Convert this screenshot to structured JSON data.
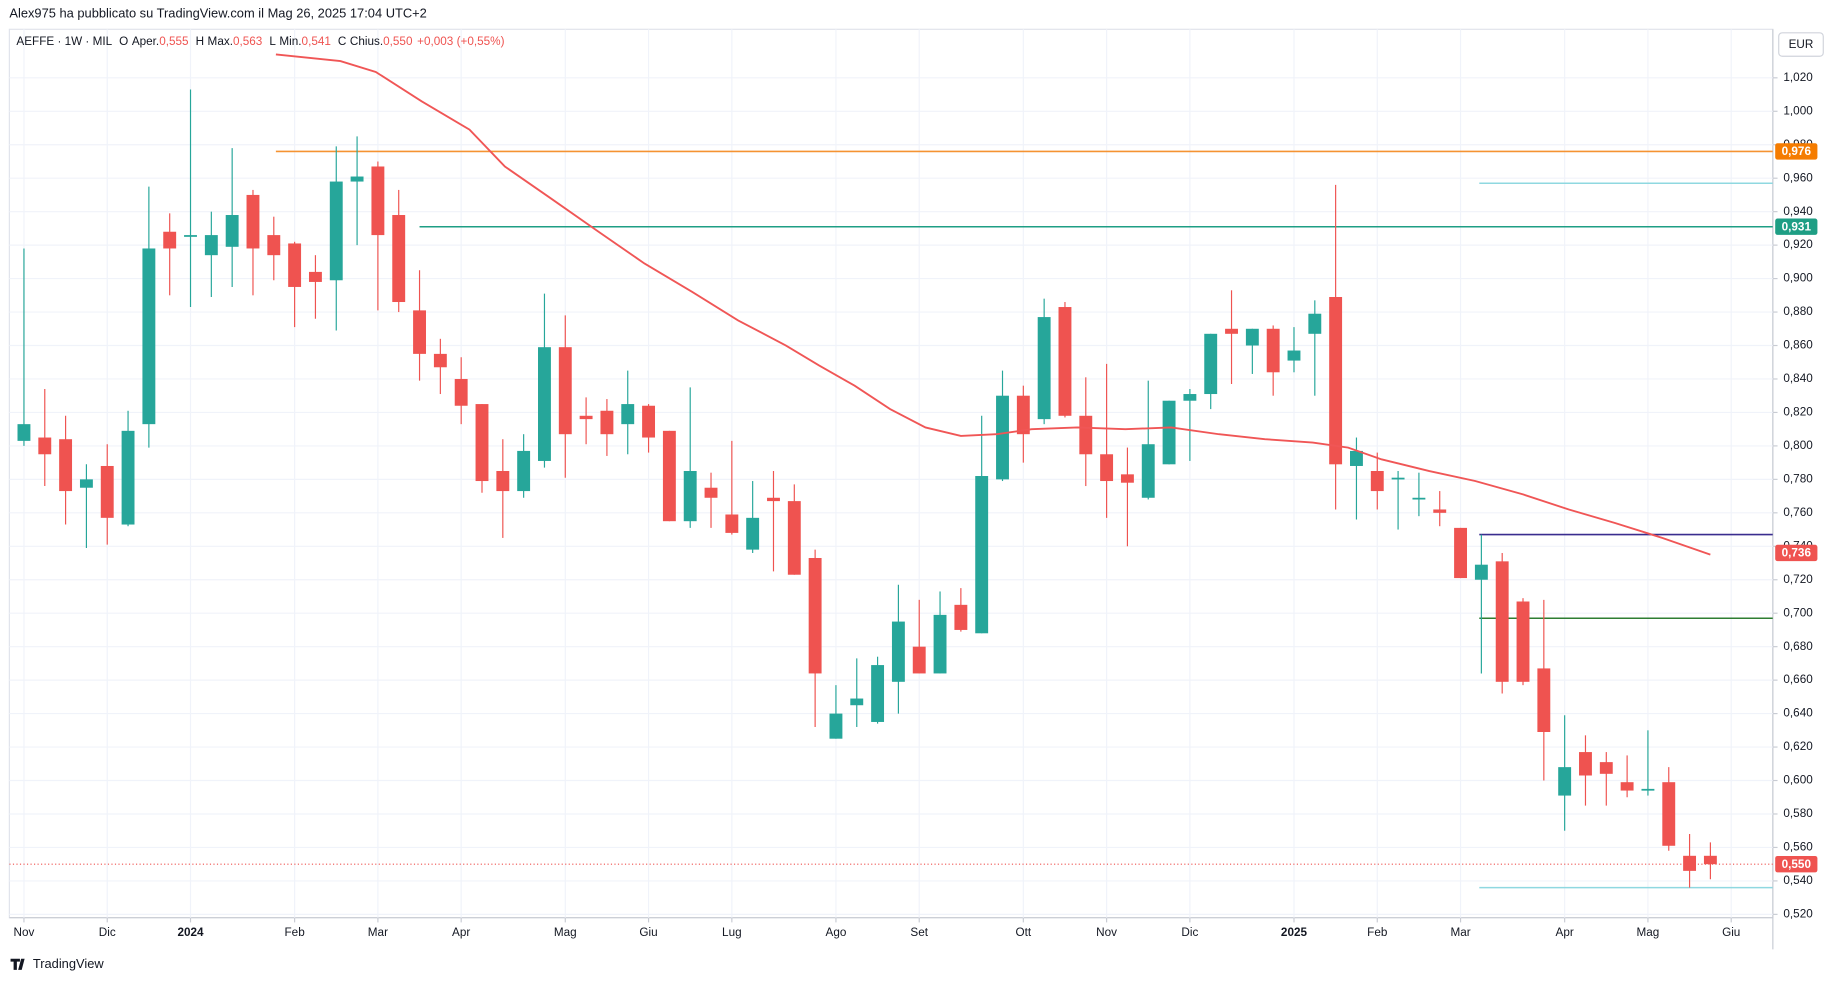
{
  "header": "Alex975 ha pubblicato su TradingView.com il Mag 26, 2025 17:04 UTC+2",
  "legend": {
    "symbol": "AEFFE · 1W · MIL",
    "items": [
      {
        "key": "O",
        "name": "Aper.",
        "value": "0,555"
      },
      {
        "key": "H",
        "name": "Max.",
        "value": "0,563"
      },
      {
        "key": "L",
        "name": "Min.",
        "value": "0,541"
      },
      {
        "key": "C",
        "name": "Chius.",
        "value": "0,550"
      }
    ],
    "change": "+0,003 (+0,55%)"
  },
  "footer": "TradingView",
  "chart_data": {
    "type": "candlestick",
    "currency": "EUR",
    "up_color": "#26a69a",
    "down_color": "#ef5350",
    "grid": true,
    "xlim": [
      -0.7,
      84
    ],
    "ylim": [
      0.518,
      1.049
    ],
    "xticks": [
      {
        "value": 0,
        "label": "Nov"
      },
      {
        "value": 4,
        "label": "Dic"
      },
      {
        "value": 8,
        "label": "2024"
      },
      {
        "value": 13,
        "label": "Feb"
      },
      {
        "value": 17,
        "label": "Mar"
      },
      {
        "value": 21,
        "label": "Apr"
      },
      {
        "value": 26,
        "label": "Mag"
      },
      {
        "value": 30,
        "label": "Giu"
      },
      {
        "value": 34,
        "label": "Lug"
      },
      {
        "value": 39,
        "label": "Ago"
      },
      {
        "value": 43,
        "label": "Set"
      },
      {
        "value": 48,
        "label": "Ott"
      },
      {
        "value": 52,
        "label": "Nov"
      },
      {
        "value": 56,
        "label": "Dic"
      },
      {
        "value": 61,
        "label": "2025"
      },
      {
        "value": 65,
        "label": "Feb"
      },
      {
        "value": 69,
        "label": "Mar"
      },
      {
        "value": 74,
        "label": "Apr"
      },
      {
        "value": 78,
        "label": "Mag"
      },
      {
        "value": 82,
        "label": "Giu"
      }
    ],
    "yticks": [
      {
        "value": 0.52,
        "label": "0,520"
      },
      {
        "value": 0.54,
        "label": "0,540"
      },
      {
        "value": 0.56,
        "label": "0,560"
      },
      {
        "value": 0.58,
        "label": "0,580"
      },
      {
        "value": 0.6,
        "label": "0,600"
      },
      {
        "value": 0.62,
        "label": "0,620"
      },
      {
        "value": 0.64,
        "label": "0,640"
      },
      {
        "value": 0.66,
        "label": "0,660"
      },
      {
        "value": 0.68,
        "label": "0,680"
      },
      {
        "value": 0.7,
        "label": "0,700"
      },
      {
        "value": 0.72,
        "label": "0,720"
      },
      {
        "value": 0.74,
        "label": "0,740"
      },
      {
        "value": 0.76,
        "label": "0,760"
      },
      {
        "value": 0.78,
        "label": "0,780"
      },
      {
        "value": 0.8,
        "label": "0,800"
      },
      {
        "value": 0.82,
        "label": "0,820"
      },
      {
        "value": 0.84,
        "label": "0,840"
      },
      {
        "value": 0.86,
        "label": "0,860"
      },
      {
        "value": 0.88,
        "label": "0,880"
      },
      {
        "value": 0.9,
        "label": "0,900"
      },
      {
        "value": 0.92,
        "label": "0,920"
      },
      {
        "value": 0.94,
        "label": "0,940"
      },
      {
        "value": 0.96,
        "label": "0,960"
      },
      {
        "value": 0.98,
        "label": "0,980"
      },
      {
        "value": 1.0,
        "label": "1,000"
      },
      {
        "value": 1.02,
        "label": "1,020"
      }
    ],
    "open": [
      0.803,
      0.805,
      0.804,
      0.775,
      0.788,
      0.753,
      0.813,
      0.928,
      0.926,
      0.914,
      0.919,
      0.95,
      0.926,
      0.921,
      0.904,
      0.899,
      0.958,
      0.967,
      0.938,
      0.881,
      0.855,
      0.84,
      0.825,
      0.785,
      0.773,
      0.791,
      0.859,
      0.818,
      0.821,
      0.813,
      0.824,
      0.809,
      0.755,
      0.775,
      0.759,
      0.738,
      0.769,
      0.767,
      0.733,
      0.625,
      0.645,
      0.635,
      0.659,
      0.68,
      0.664,
      0.705,
      0.688,
      0.78,
      0.83,
      0.816,
      0.883,
      0.818,
      0.795,
      0.783,
      0.769,
      0.789,
      0.827,
      0.831,
      0.87,
      0.86,
      0.87,
      0.851,
      0.867,
      0.889,
      0.788,
      0.785,
      0.78,
      0.769,
      0.762,
      0.751,
      0.72,
      0.731,
      0.707,
      0.667,
      0.591,
      0.617,
      0.611,
      0.599,
      0.594,
      0.599,
      0.555,
      0.555
    ],
    "high": [
      0.918,
      0.834,
      0.818,
      0.789,
      0.801,
      0.821,
      0.955,
      0.939,
      1.013,
      0.94,
      0.978,
      0.953,
      0.937,
      0.922,
      0.914,
      0.979,
      0.985,
      0.97,
      0.953,
      0.905,
      0.864,
      0.853,
      0.825,
      0.804,
      0.807,
      0.891,
      0.878,
      0.829,
      0.828,
      0.845,
      0.825,
      0.809,
      0.835,
      0.784,
      0.803,
      0.779,
      0.785,
      0.777,
      0.738,
      0.657,
      0.673,
      0.674,
      0.717,
      0.708,
      0.713,
      0.715,
      0.818,
      0.845,
      0.836,
      0.888,
      0.886,
      0.841,
      0.849,
      0.799,
      0.839,
      0.827,
      0.834,
      0.867,
      0.893,
      0.87,
      0.872,
      0.871,
      0.887,
      0.956,
      0.805,
      0.796,
      0.785,
      0.784,
      0.773,
      0.751,
      0.747,
      0.736,
      0.709,
      0.708,
      0.639,
      0.627,
      0.617,
      0.615,
      0.63,
      0.608,
      0.568,
      0.563
    ],
    "low": [
      0.8,
      0.776,
      0.753,
      0.739,
      0.741,
      0.752,
      0.799,
      0.89,
      0.883,
      0.889,
      0.895,
      0.89,
      0.899,
      0.871,
      0.876,
      0.869,
      0.92,
      0.881,
      0.88,
      0.839,
      0.831,
      0.813,
      0.772,
      0.745,
      0.769,
      0.787,
      0.781,
      0.801,
      0.794,
      0.795,
      0.796,
      0.755,
      0.751,
      0.751,
      0.747,
      0.736,
      0.725,
      0.723,
      0.632,
      0.625,
      0.632,
      0.634,
      0.64,
      0.664,
      0.664,
      0.689,
      0.688,
      0.779,
      0.79,
      0.813,
      0.817,
      0.776,
      0.757,
      0.74,
      0.768,
      0.789,
      0.791,
      0.822,
      0.837,
      0.843,
      0.83,
      0.844,
      0.83,
      0.762,
      0.756,
      0.762,
      0.75,
      0.758,
      0.752,
      0.721,
      0.664,
      0.652,
      0.657,
      0.6,
      0.57,
      0.585,
      0.585,
      0.59,
      0.591,
      0.558,
      0.536,
      0.541
    ],
    "close": [
      0.813,
      0.795,
      0.773,
      0.78,
      0.757,
      0.809,
      0.918,
      0.918,
      0.926,
      0.926,
      0.938,
      0.918,
      0.914,
      0.895,
      0.898,
      0.958,
      0.961,
      0.926,
      0.886,
      0.855,
      0.847,
      0.824,
      0.779,
      0.773,
      0.797,
      0.859,
      0.807,
      0.816,
      0.807,
      0.825,
      0.805,
      0.755,
      0.785,
      0.769,
      0.748,
      0.757,
      0.767,
      0.723,
      0.664,
      0.64,
      0.649,
      0.669,
      0.695,
      0.664,
      0.699,
      0.69,
      0.782,
      0.83,
      0.807,
      0.877,
      0.818,
      0.795,
      0.779,
      0.778,
      0.801,
      0.827,
      0.831,
      0.867,
      0.867,
      0.87,
      0.844,
      0.857,
      0.879,
      0.789,
      0.797,
      0.773,
      0.781,
      0.769,
      0.76,
      0.721,
      0.729,
      0.659,
      0.659,
      0.629,
      0.608,
      0.603,
      0.604,
      0.594,
      0.595,
      0.561,
      0.546,
      0.55
    ],
    "moving_average": {
      "color": "#f05656",
      "x": [
        12.1,
        15.2,
        16.9,
        19.1,
        21.4,
        23.1,
        25.3,
        27.6,
        29.8,
        32.1,
        34.3,
        36.6,
        38.2,
        39.9,
        41.6,
        43.3,
        45,
        46.7,
        48.4,
        50.6,
        52.9,
        55.1,
        57.4,
        59.6,
        61.9,
        63.6,
        65.2,
        67.5,
        69.7,
        72,
        74.2,
        76.4,
        78.7,
        81
      ],
      "values": [
        1.034,
        1.03,
        1.0235,
        1.006,
        0.989,
        0.967,
        0.948,
        0.928,
        0.909,
        0.892,
        0.875,
        0.86,
        0.848,
        0.836,
        0.822,
        0.811,
        0.806,
        0.807,
        0.81,
        0.811,
        0.81,
        0.811,
        0.807,
        0.804,
        0.802,
        0.799,
        0.792,
        0.785,
        0.779,
        0.771,
        0.762,
        0.754,
        0.745,
        0.735
      ]
    },
    "levels": [
      {
        "value": 0.976,
        "from": 12.1,
        "color": "#f59332"
      },
      {
        "value": 0.931,
        "from": 19,
        "color": "#1e9e84"
      },
      {
        "value": 0.957,
        "from": 69.9,
        "color": "#8fd8e0"
      },
      {
        "value": 0.747,
        "from": 69.9,
        "color": "#3a2d8f"
      },
      {
        "value": 0.697,
        "from": 69.9,
        "color": "#2e7d32"
      },
      {
        "value": 0.536,
        "from": 69.9,
        "color": "#8fd8e0"
      }
    ],
    "last_price": {
      "value": 0.55,
      "color": "#ef5350"
    },
    "badges": [
      {
        "value": 0.976,
        "label": "0,976",
        "color": "#f57c00"
      },
      {
        "value": 0.931,
        "label": "0,931",
        "color": "#1e9e84"
      },
      {
        "value": 0.736,
        "label": "0,736",
        "color": "#ef5350"
      },
      {
        "value": 0.55,
        "label": "0,550",
        "color": "#ef5350"
      }
    ]
  }
}
